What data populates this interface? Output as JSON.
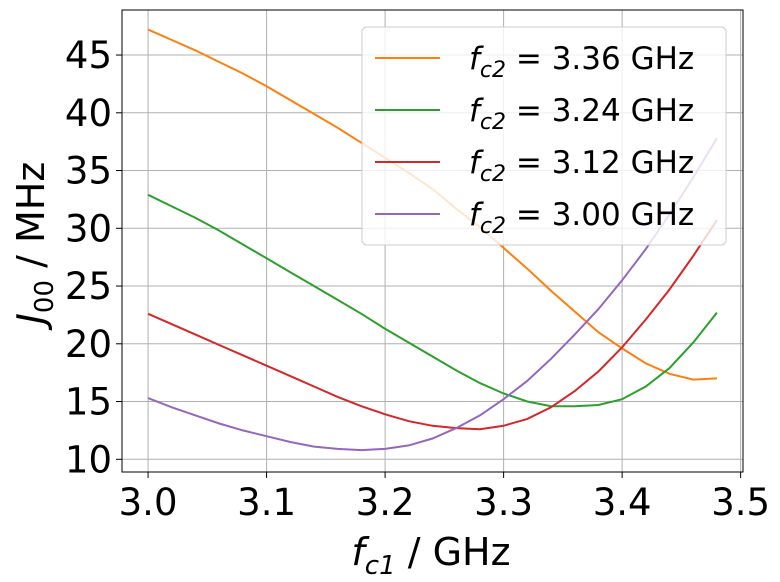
{
  "chart_data": {
    "type": "line",
    "xlabel": "f_c1 / GHz",
    "ylabel": "J_00 / MHz",
    "xlim": [
      2.978,
      3.502
    ],
    "ylim": [
      8.9,
      48.9
    ],
    "xticks": [
      3.0,
      3.1,
      3.2,
      3.3,
      3.4,
      3.5
    ],
    "xtick_labels": [
      "3.0",
      "3.1",
      "3.2",
      "3.3",
      "3.4",
      "3.5"
    ],
    "yticks": [
      10,
      15,
      20,
      25,
      30,
      35,
      40,
      45
    ],
    "ytick_labels": [
      "10",
      "15",
      "20",
      "25",
      "30",
      "35",
      "40",
      "45"
    ],
    "grid": true,
    "legend_position": "top-right",
    "x": [
      3.0,
      3.02,
      3.04,
      3.06,
      3.08,
      3.1,
      3.12,
      3.14,
      3.16,
      3.18,
      3.2,
      3.22,
      3.24,
      3.26,
      3.28,
      3.3,
      3.32,
      3.34,
      3.36,
      3.38,
      3.4,
      3.42,
      3.44,
      3.46,
      3.48
    ],
    "series": [
      {
        "name": "f_c2 = 3.36 GHz",
        "legend_value": "= 3.36 GHz",
        "color": "#ff7f0e",
        "values": [
          47.2,
          46.3,
          45.4,
          44.4,
          43.4,
          42.3,
          41.1,
          39.9,
          38.7,
          37.4,
          36.1,
          34.8,
          33.4,
          31.7,
          30.1,
          28.3,
          26.5,
          24.6,
          22.8,
          21.0,
          19.6,
          18.3,
          17.4,
          16.9,
          17.0
        ]
      },
      {
        "name": "f_c2 = 3.24 GHz",
        "legend_value": "= 3.24 GHz",
        "color": "#2ca02c",
        "values": [
          32.9,
          31.9,
          30.9,
          29.8,
          28.6,
          27.4,
          26.2,
          25.0,
          23.8,
          22.6,
          21.3,
          20.1,
          18.9,
          17.7,
          16.6,
          15.7,
          15.0,
          14.6,
          14.6,
          14.7,
          15.2,
          16.3,
          17.9,
          20.1,
          22.7
        ]
      },
      {
        "name": "f_c2 = 3.12 GHz",
        "legend_value": "= 3.12 GHz",
        "color": "#d62728",
        "values": [
          22.6,
          21.7,
          20.8,
          19.9,
          19.0,
          18.1,
          17.2,
          16.3,
          15.4,
          14.6,
          13.9,
          13.3,
          12.9,
          12.7,
          12.6,
          12.9,
          13.5,
          14.5,
          15.9,
          17.6,
          19.7,
          22.1,
          24.7,
          27.6,
          30.7
        ]
      },
      {
        "name": "f_c2 = 3.00 GHz",
        "legend_value": "= 3.00 GHz",
        "color": "#9467bd",
        "values": [
          15.3,
          14.5,
          13.8,
          13.1,
          12.5,
          12.0,
          11.5,
          11.1,
          10.9,
          10.8,
          10.9,
          11.2,
          11.8,
          12.7,
          13.8,
          15.2,
          16.8,
          18.7,
          20.8,
          23.0,
          25.5,
          28.2,
          31.2,
          34.4,
          37.8
        ]
      }
    ]
  }
}
